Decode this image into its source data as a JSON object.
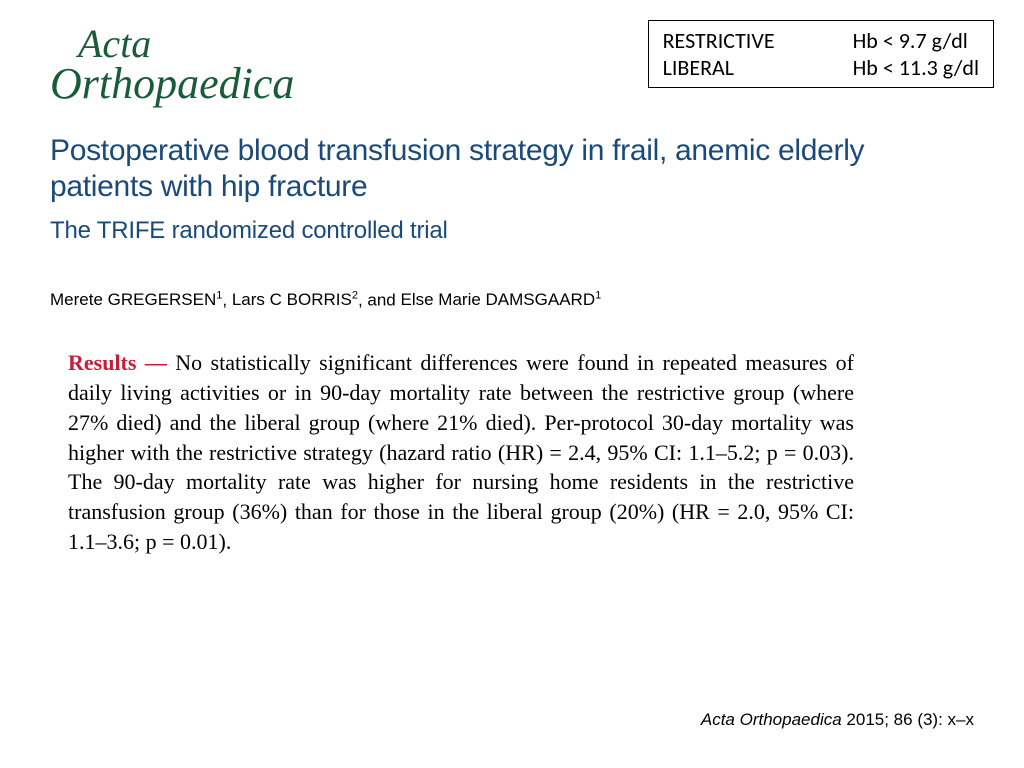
{
  "journal": {
    "name_line1": "Acta",
    "name_line2": "Orthopaedica",
    "logo_color": "#1a5c3a"
  },
  "threshold_box": {
    "rows": [
      {
        "label": "RESTRICTIVE",
        "value": "Hb < 9.7 g/dl"
      },
      {
        "label": "LIBERAL",
        "value": "Hb < 11.3 g/dl"
      }
    ],
    "border_color": "#000000",
    "font_size": 22
  },
  "article": {
    "title": "Postoperative blood transfusion strategy in frail, anemic elderly patients with hip fracture",
    "subtitle": "The TRIFE randomized controlled trial",
    "title_color": "#1a4a7a",
    "title_fontsize": 30,
    "subtitle_fontsize": 24
  },
  "authors": {
    "text_parts": [
      {
        "name": "Merete GREGERSEN",
        "sup": "1"
      },
      {
        "name": "Lars C BORRIS",
        "sup": "2"
      },
      {
        "name": "Else Marie DAMSGAARD",
        "sup": "1"
      }
    ],
    "fontsize": 17
  },
  "results": {
    "label": "Results —",
    "label_color": "#c41e3a",
    "body": "No statistically significant differences were found in repeated measures of daily living activities or in 90-day mortality rate between the restrictive group (where 27% died) and the liberal group (where 21% died). Per-protocol 30-day mortality was higher with the restrictive strategy (hazard ratio (HR) = 2.4, 95% CI: 1.1–5.2; p = 0.03). The 90-day mortality rate was higher for nursing home residents in the restrictive transfusion group (36%) than for those in the liberal group (20%) (HR = 2.0, 95% CI: 1.1–3.6; p = 0.01).",
    "fontsize": 22
  },
  "citation": {
    "journal": "Acta Orthopaedica",
    "year_vol": "2015; 86 (3): x–x",
    "fontsize": 17
  },
  "colors": {
    "background": "#ffffff",
    "text": "#000000"
  }
}
